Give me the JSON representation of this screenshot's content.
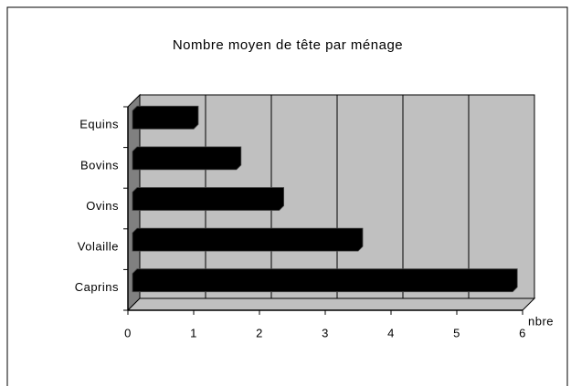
{
  "chart_data": {
    "type": "hbar",
    "title": "Nombre moyen de tête par ménage",
    "categories": [
      "Equins",
      "Bovins",
      "Ovins",
      "Volaille",
      "Caprins"
    ],
    "values": [
      1.0,
      1.65,
      2.3,
      3.5,
      5.85
    ],
    "color": "#000000",
    "x_label": "nbre",
    "xlim": [
      0,
      6
    ],
    "xticks": [
      0,
      1,
      2,
      3,
      4,
      5,
      6
    ],
    "grid": true
  }
}
